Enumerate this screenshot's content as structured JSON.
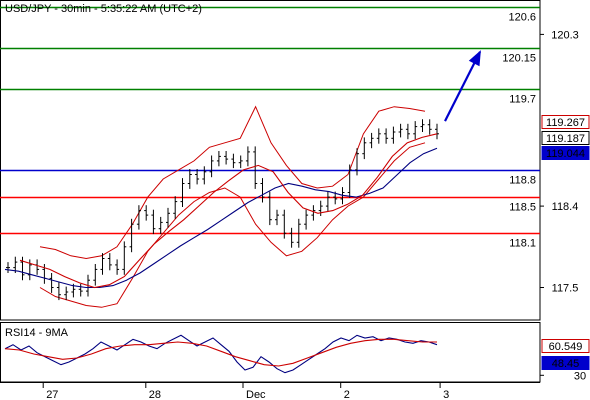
{
  "chart_data": {
    "type": "line",
    "title": "USD/JPY - 30min - 5:35:22 AM (UTC+2)",
    "price_panel": {
      "ylim": [
        117.14,
        120.68
      ],
      "y_ticks": [
        {
          "value": 120.3,
          "label": "120.3"
        },
        {
          "value": 118.4,
          "label": "118.4"
        },
        {
          "value": 117.5,
          "label": "117.5"
        }
      ],
      "horizontal_levels": [
        {
          "value": 120.6,
          "label": "120.6",
          "color": "#008000"
        },
        {
          "value": 120.15,
          "label": "120.15",
          "color": "#008000"
        },
        {
          "value": 119.7,
          "label": "119.7",
          "color": "#008000"
        },
        {
          "value": 118.8,
          "label": "118.8",
          "color": "#0000cc"
        },
        {
          "value": 118.5,
          "label": "118.5",
          "color": "#ff0000"
        },
        {
          "value": 118.1,
          "label": "118.1",
          "color": "#ff0000"
        }
      ],
      "price_badges": [
        {
          "value": 119.267,
          "label": "119.267",
          "bg": "#ffffff",
          "fg": "#cc0000",
          "border": "#cc0000"
        },
        {
          "value": 119.187,
          "label": "119.187",
          "bg": "#ffffff",
          "fg": "#000000",
          "border": "#000000"
        },
        {
          "value": 119.044,
          "label": "119.044",
          "bg": "#0000cc",
          "fg": "#ffffff",
          "border": "#0000cc"
        }
      ],
      "price_series": [
        117.72,
        117.78,
        117.64,
        117.75,
        117.7,
        117.6,
        117.5,
        117.42,
        117.45,
        117.48,
        117.46,
        117.58,
        117.7,
        117.82,
        117.75,
        117.7,
        117.95,
        118.2,
        118.35,
        118.3,
        118.15,
        118.22,
        118.32,
        118.45,
        118.65,
        118.75,
        118.7,
        118.78,
        118.9,
        118.95,
        118.92,
        118.88,
        118.9,
        119.0,
        118.65,
        118.5,
        118.25,
        118.3,
        118.1,
        118.0,
        118.2,
        118.3,
        118.35,
        118.4,
        118.5,
        118.48,
        118.55,
        118.8,
        118.98,
        119.1,
        119.15,
        119.2,
        119.15,
        119.22,
        119.25,
        119.2,
        119.28,
        119.3,
        119.25,
        119.2
      ],
      "moving_averages": [
        {
          "color": "#000080",
          "values": [
            117.7,
            117.68,
            117.64,
            117.6,
            117.56,
            117.52,
            117.5,
            117.5,
            117.52,
            117.58,
            117.66,
            117.76,
            117.86,
            117.96,
            118.05,
            118.14,
            118.24,
            118.34,
            118.44,
            118.52,
            118.6,
            118.65,
            118.62,
            118.58,
            118.56,
            118.52,
            118.5,
            118.54,
            118.6,
            118.74,
            118.88,
            118.98,
            119.04
          ]
        },
        {
          "color": "#cc0000",
          "values": [
            117.8,
            117.75,
            117.7,
            117.62,
            117.55,
            117.5,
            117.53,
            117.62,
            117.8,
            117.98,
            118.12,
            118.25,
            118.4,
            118.55,
            118.68,
            118.8,
            118.85,
            118.78,
            118.55,
            118.38,
            118.32,
            118.35,
            118.42,
            118.52,
            118.72,
            118.95,
            119.1,
            119.16,
            119.2
          ]
        }
      ],
      "bollinger_bands": {
        "color": "#cc0000",
        "upper": [
          117.95,
          117.92,
          117.85,
          117.82,
          117.85,
          117.95,
          118.2,
          118.5,
          118.7,
          118.8,
          118.9,
          119.05,
          119.1,
          119.15,
          119.5,
          119.1,
          118.85,
          118.65,
          118.6,
          118.62,
          118.75,
          119.2,
          119.45,
          119.5,
          119.48,
          119.45
        ],
        "lower": [
          117.5,
          117.4,
          117.35,
          117.3,
          117.28,
          117.32,
          117.6,
          117.9,
          118.1,
          118.3,
          118.45,
          118.55,
          118.6,
          118.5,
          118.2,
          118.0,
          117.85,
          117.9,
          118.05,
          118.25,
          118.4,
          118.5,
          118.7,
          118.9,
          119.05,
          119.1
        ]
      },
      "forecast_arrow": {
        "from": 119.34,
        "to": 120.15,
        "color": "#0000cc"
      }
    },
    "rsi_panel": {
      "title": "RSI14 - 9MA",
      "ylim": [
        25,
        70
      ],
      "y_ticks": [
        {
          "value": 30,
          "label": "30"
        }
      ],
      "values": [
        50,
        53,
        49,
        52,
        47,
        44,
        41,
        38,
        40,
        43,
        46,
        50,
        55,
        52,
        49,
        53,
        57,
        55,
        52,
        50,
        54,
        57,
        60,
        56,
        52,
        55,
        58,
        53,
        48,
        40,
        34,
        36,
        44,
        40,
        35,
        32,
        34,
        38,
        42,
        46,
        50,
        55,
        58,
        56,
        60,
        58,
        59,
        56,
        58,
        57,
        55,
        54,
        56,
        55,
        53
      ],
      "ma_values": [
        50,
        49,
        46,
        44,
        42,
        43,
        46,
        50,
        52,
        53,
        53,
        54,
        55,
        54,
        52,
        48,
        44,
        41,
        38,
        37,
        39,
        43,
        47,
        51,
        54,
        56,
        57,
        57,
        56,
        55,
        55
      ],
      "badges": [
        {
          "value": 60.549,
          "label": "60.549",
          "bg": "#ffffff",
          "fg": "#cc0000",
          "border": "#cc0000"
        },
        {
          "value": 48.45,
          "label": "48.45",
          "bg": "#0000cc",
          "fg": "#ffffff",
          "border": "#0000cc"
        }
      ]
    },
    "x_ticks": [
      {
        "label": "27",
        "fraction": 0.08
      },
      {
        "label": "28",
        "fraction": 0.27
      },
      {
        "label": "Dec",
        "fraction": 0.45
      },
      {
        "label": "2",
        "fraction": 0.631
      },
      {
        "label": "3",
        "fraction": 0.815
      }
    ],
    "colors": {
      "candles": "#000000",
      "rsi_line": "#000080",
      "rsi_ma": "#cc0000",
      "grid_ticks": "#000000",
      "axis_bg": "#ffffff"
    }
  }
}
